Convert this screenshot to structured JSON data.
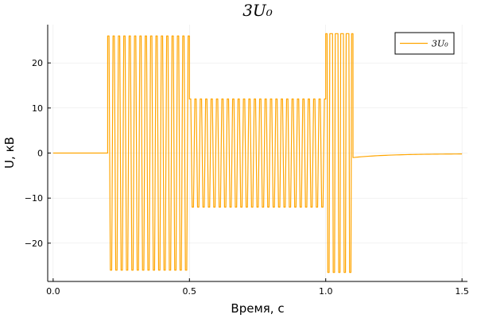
{
  "chart_data": {
    "type": "line",
    "title": "3U₀",
    "xlabel": "Время, с",
    "ylabel": "U, кВ",
    "xlim": [
      -0.02,
      1.52
    ],
    "ylim": [
      -28.5,
      28.5
    ],
    "xticks": [
      0.0,
      0.5,
      1.0,
      1.5
    ],
    "xtick_labels": [
      "0.0",
      "0.5",
      "1.0",
      "1.5"
    ],
    "yticks": [
      -20,
      -10,
      0,
      10,
      20
    ],
    "ytick_labels": [
      "−20",
      "−10",
      "0",
      "10",
      "20"
    ],
    "grid": true,
    "legend_position": "top-right",
    "series": [
      {
        "name": "3U₀",
        "color": "#ffa500",
        "segments": [
          {
            "kind": "flat",
            "x_start": 0.0,
            "x_end": 0.2,
            "value": 0
          },
          {
            "kind": "sine",
            "x_start": 0.2,
            "x_end": 0.5,
            "amplitude": 26.0,
            "frequency_hz": 50
          },
          {
            "kind": "sine",
            "x_start": 0.5,
            "x_end": 1.0,
            "amplitude": 12.0,
            "frequency_hz": 50
          },
          {
            "kind": "sine",
            "x_start": 1.0,
            "x_end": 1.1,
            "amplitude": 26.5,
            "frequency_hz": 50
          },
          {
            "kind": "decay",
            "x_start": 1.1,
            "x_end": 1.5,
            "start_value": -1.0,
            "end_value": -0.2
          }
        ]
      }
    ]
  }
}
